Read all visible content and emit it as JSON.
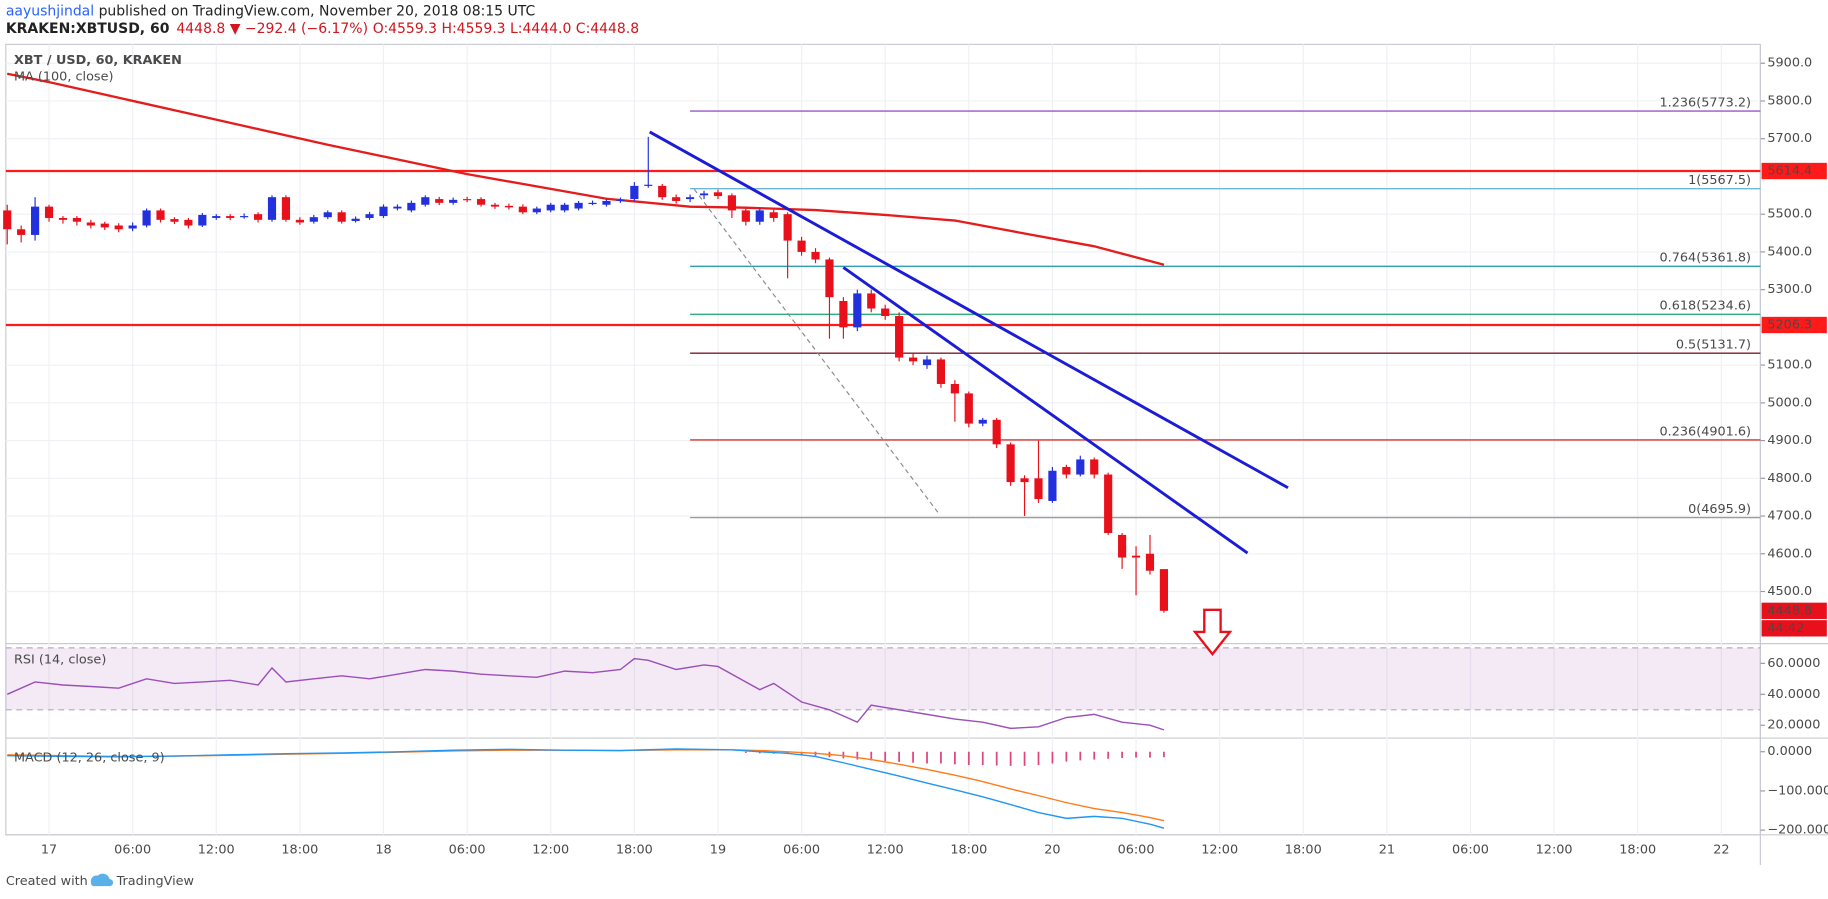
{
  "header": {
    "author": "aayushjindal",
    "published": " published on TradingView.com, November 20, 2018 08:15 UTC",
    "symbol": "KRAKEN:XBTUSD, 60",
    "change": "4448.8 ▼ −292.4 (−6.17%)",
    "ohlc": "O:4559.3 H:4559.3 L:4444.0 C:4448.8"
  },
  "chart_data": [
    {
      "type": "candlestick",
      "title": "XBT / USD, 60, KRAKEN",
      "up_color": "#2230dd",
      "down_color": "#e8101b",
      "xlim": [
        -3.1,
        122.8
      ],
      "ylim": [
        4365,
        5950
      ],
      "xticks": [
        {
          "value": 0,
          "label": "17"
        },
        {
          "value": 6,
          "label": "06:00"
        },
        {
          "value": 12,
          "label": "12:00"
        },
        {
          "value": 18,
          "label": "18:00"
        },
        {
          "value": 24,
          "label": "18"
        },
        {
          "value": 30,
          "label": "06:00"
        },
        {
          "value": 36,
          "label": "12:00"
        },
        {
          "value": 42,
          "label": "18:00"
        },
        {
          "value": 48,
          "label": "19"
        },
        {
          "value": 54,
          "label": "06:00"
        },
        {
          "value": 60,
          "label": "12:00"
        },
        {
          "value": 66,
          "label": "18:00"
        },
        {
          "value": 72,
          "label": "20"
        },
        {
          "value": 78,
          "label": "06:00"
        },
        {
          "value": 84,
          "label": "12:00"
        },
        {
          "value": 90,
          "label": "18:00"
        },
        {
          "value": 96,
          "label": "21"
        },
        {
          "value": 102,
          "label": "06:00"
        },
        {
          "value": 108,
          "label": "12:00"
        },
        {
          "value": 114,
          "label": "18:00"
        },
        {
          "value": 120,
          "label": "22"
        }
      ],
      "yticks": [
        {
          "value": 5900,
          "label": "5900.0"
        },
        {
          "value": 5800,
          "label": "5800.0"
        },
        {
          "value": 5700,
          "label": "5700.0"
        },
        {
          "value": 5500,
          "label": "5500.0"
        },
        {
          "value": 5400,
          "label": "5400.0"
        },
        {
          "value": 5300,
          "label": "5300.0"
        },
        {
          "value": 5100,
          "label": "5100.0"
        },
        {
          "value": 5000,
          "label": "5000.0"
        },
        {
          "value": 4900,
          "label": "4900.0"
        },
        {
          "value": 4800,
          "label": "4800.0"
        },
        {
          "value": 4700,
          "label": "4700.0"
        },
        {
          "value": 4600,
          "label": "4600.0"
        },
        {
          "value": 4500,
          "label": "4500.0"
        }
      ],
      "grid": true,
      "x": [
        -3,
        -2,
        -1,
        0,
        1,
        2,
        3,
        4,
        5,
        6,
        7,
        8,
        9,
        10,
        11,
        12,
        13,
        14,
        15,
        16,
        17,
        18,
        19,
        20,
        21,
        22,
        23,
        24,
        25,
        26,
        27,
        28,
        29,
        30,
        31,
        32,
        33,
        34,
        35,
        36,
        37,
        38,
        39,
        40,
        41,
        42,
        43,
        44,
        45,
        46,
        47,
        48,
        49,
        50,
        51,
        52,
        53,
        54,
        55,
        56,
        57,
        58,
        59,
        60,
        61,
        62,
        63,
        64,
        65,
        66,
        67,
        68,
        69,
        70,
        71,
        72,
        73,
        74,
        75,
        76,
        77,
        78,
        79,
        80
      ],
      "open": [
        5510,
        5460,
        5445,
        5520,
        5490,
        5490,
        5478,
        5475,
        5470,
        5462,
        5470,
        5510,
        5487,
        5485,
        5470,
        5490,
        5495,
        5492,
        5500,
        5485,
        5545,
        5485,
        5480,
        5492,
        5505,
        5482,
        5490,
        5495,
        5515,
        5510,
        5525,
        5540,
        5530,
        5540,
        5540,
        5525,
        5522,
        5520,
        5505,
        5510,
        5510,
        5515,
        5530,
        5525,
        5535,
        5540,
        5575,
        5575,
        5545,
        5540,
        5550,
        5558,
        5550,
        5510,
        5480,
        5505,
        5500,
        5430,
        5400,
        5380,
        5270,
        5200,
        5290,
        5250,
        5230,
        5120,
        5100,
        5115,
        5050,
        5025,
        4945,
        4955,
        4890,
        4800,
        4800,
        4740,
        4830,
        4810,
        4850,
        4810,
        4650,
        4595,
        4600,
        4559.3
      ],
      "high": [
        5525,
        5470,
        5545,
        5525,
        5495,
        5495,
        5485,
        5480,
        5476,
        5478,
        5515,
        5515,
        5492,
        5490,
        5503,
        5500,
        5500,
        5502,
        5505,
        5550,
        5550,
        5492,
        5498,
        5510,
        5510,
        5494,
        5506,
        5526,
        5526,
        5536,
        5550,
        5546,
        5544,
        5546,
        5545,
        5530,
        5528,
        5526,
        5520,
        5530,
        5530,
        5535,
        5536,
        5540,
        5544,
        5585,
        5705,
        5580,
        5552,
        5552,
        5562,
        5565,
        5555,
        5515,
        5515,
        5512,
        5505,
        5440,
        5410,
        5385,
        5280,
        5300,
        5300,
        5260,
        5240,
        5130,
        5125,
        5120,
        5060,
        5030,
        4960,
        4960,
        4895,
        4808,
        4900,
        4830,
        4836,
        4860,
        4855,
        4815,
        4655,
        4620,
        4650,
        4559.3
      ],
      "low": [
        5420,
        5425,
        5430,
        5480,
        5475,
        5470,
        5462,
        5458,
        5452,
        5455,
        5465,
        5478,
        5474,
        5462,
        5466,
        5485,
        5484,
        5488,
        5478,
        5480,
        5480,
        5472,
        5475,
        5487,
        5475,
        5478,
        5485,
        5490,
        5510,
        5505,
        5520,
        5524,
        5525,
        5532,
        5520,
        5514,
        5512,
        5500,
        5500,
        5505,
        5505,
        5510,
        5524,
        5520,
        5530,
        5535,
        5570,
        5538,
        5528,
        5532,
        5540,
        5540,
        5490,
        5470,
        5472,
        5480,
        5330,
        5390,
        5370,
        5170,
        5170,
        5190,
        5240,
        5220,
        5110,
        5100,
        5090,
        5040,
        4950,
        4935,
        4938,
        4880,
        4780,
        4700,
        4735,
        4735,
        4800,
        4805,
        4800,
        4650,
        4560,
        4490,
        4545,
        4444.0
      ],
      "close": [
        5460,
        5445,
        5520,
        5490,
        5485,
        5480,
        5470,
        5465,
        5460,
        5470,
        5510,
        5485,
        5480,
        5470,
        5498,
        5495,
        5490,
        5495,
        5485,
        5545,
        5485,
        5478,
        5492,
        5505,
        5480,
        5488,
        5500,
        5520,
        5520,
        5530,
        5545,
        5530,
        5538,
        5538,
        5525,
        5520,
        5518,
        5505,
        5515,
        5525,
        5525,
        5530,
        5530,
        5535,
        5538,
        5575,
        5578,
        5545,
        5535,
        5545,
        5555,
        5548,
        5510,
        5480,
        5510,
        5490,
        5430,
        5400,
        5380,
        5280,
        5200,
        5290,
        5250,
        5230,
        5120,
        5110,
        5115,
        5050,
        5025,
        4945,
        4955,
        4890,
        4790,
        4790,
        4745,
        4820,
        4810,
        4850,
        4810,
        4655,
        4590,
        4590,
        4555,
        4448.8
      ],
      "ma": {
        "name": "MA (100, close)",
        "color": "#e51c1c",
        "x": [
          -3,
          0,
          10,
          20,
          30,
          40,
          46,
          50,
          55,
          60,
          65,
          70,
          75,
          80
        ],
        "values": [
          5872,
          5850,
          5767,
          5684,
          5606,
          5541,
          5520,
          5517,
          5511,
          5498,
          5483,
          5449,
          5415,
          5366
        ]
      },
      "price_lines": [
        {
          "value": 5614.4,
          "color": "#ff1a1a"
        },
        {
          "value": 5206.3,
          "color": "#ff1a1a"
        }
      ],
      "fib_start": 46,
      "fib_levels": [
        {
          "value": 5773.2,
          "label": "1.236(5773.2)",
          "color": "#9c56c9"
        },
        {
          "value": 5567.5,
          "label": "1(5567.5)",
          "color": "#6cb8d4"
        },
        {
          "value": 5361.8,
          "label": "0.764(5361.8)",
          "color": "#2f9fb5"
        },
        {
          "value": 5234.6,
          "label": "0.618(5234.6)",
          "color": "#2fae7a"
        },
        {
          "value": 5131.7,
          "label": "0.5(5131.7)",
          "color": "#7b1e2c"
        },
        {
          "value": 4901.6,
          "label": "0.236(4901.6)",
          "color": "#d63232"
        },
        {
          "value": 4695.9,
          "label": "0(4695.9)",
          "color": "#9a9a9a"
        }
      ],
      "trendlines": [
        {
          "x": [
            43.1,
            88.9
          ],
          "y": [
            5718,
            4775
          ],
          "color": "#1c1cd6"
        },
        {
          "x": [
            57.0,
            86.0
          ],
          "y": [
            5359,
            4602
          ],
          "color": "#1c1cd6"
        }
      ],
      "dashed_line": {
        "x": [
          46.3,
          63.9
        ],
        "y": [
          5566,
          4704
        ],
        "color": "#8a8a8a"
      },
      "last_price": 4448.8,
      "countdown": "44:42"
    },
    {
      "type": "line",
      "title": "RSI (14, close)",
      "ylim": [
        12.5,
        72
      ],
      "band": [
        30,
        70
      ],
      "color": "#9b4fb8",
      "yticks": [
        {
          "value": 60,
          "label": "60.0000"
        },
        {
          "value": 40,
          "label": "40.0000"
        },
        {
          "value": 20,
          "label": "20.0000"
        }
      ],
      "x": [
        -3,
        -1,
        1,
        3,
        5,
        7,
        9,
        11,
        13,
        15,
        16,
        17,
        19,
        21,
        23,
        25,
        27,
        29,
        31,
        33,
        35,
        37,
        39,
        41,
        42,
        43,
        45,
        47,
        48,
        50,
        51,
        52,
        54,
        56,
        58,
        59,
        61,
        63,
        65,
        67,
        69,
        71,
        73,
        75,
        77,
        79,
        80
      ],
      "values": [
        40,
        48,
        46,
        45,
        44,
        50,
        47,
        48,
        49,
        46,
        57,
        48,
        50,
        52,
        50,
        53,
        56,
        55,
        53,
        52,
        51,
        55,
        54,
        56,
        63,
        62,
        56,
        59,
        58,
        48,
        43,
        47,
        35,
        30,
        22,
        33,
        30,
        27,
        24,
        22,
        18,
        19,
        25,
        27,
        22,
        20,
        17
      ]
    },
    {
      "type": "macd",
      "title": "MACD (12, 26, close, 9)",
      "ylim": [
        -209,
        32
      ],
      "yticks": [
        {
          "value": 0,
          "label": "0.0000"
        },
        {
          "value": -100,
          "label": "−100.0000"
        },
        {
          "value": -200,
          "label": "−200.0000"
        }
      ],
      "x": [
        -3,
        1,
        5,
        9,
        13,
        17,
        21,
        25,
        29,
        33,
        37,
        41,
        45,
        49,
        51,
        53,
        55,
        57,
        59,
        61,
        63,
        65,
        67,
        69,
        71,
        73,
        75,
        77,
        79,
        80
      ],
      "macd": {
        "color": "#2196f3",
        "values": [
          -10,
          -12,
          -13,
          -11,
          -8,
          -5,
          -3,
          0,
          4,
          6,
          4,
          3,
          7,
          5,
          0,
          -4,
          -12,
          -28,
          -45,
          -62,
          -80,
          -97,
          -115,
          -135,
          -155,
          -170,
          -165,
          -170,
          -185,
          -195
        ]
      },
      "signal": {
        "color": "#ff7a1a",
        "values": [
          -8,
          -10,
          -12,
          -11,
          -9,
          -6,
          -4,
          -1,
          2,
          4,
          4,
          3,
          5,
          5,
          3,
          0,
          -4,
          -10,
          -20,
          -32,
          -45,
          -60,
          -76,
          -95,
          -112,
          -130,
          -145,
          -155,
          -168,
          -176
        ]
      },
      "histogram": {
        "color": "#e0457b",
        "x": [
          50,
          51,
          52,
          53,
          54,
          55,
          56,
          57,
          58,
          59,
          60,
          61,
          62,
          63,
          64,
          65,
          66,
          67,
          68,
          69,
          70,
          71,
          72,
          73,
          74,
          75,
          76,
          77,
          78,
          79,
          80
        ],
        "values": [
          -3,
          -4,
          -5,
          -6,
          -8,
          -10,
          -14,
          -17,
          -20,
          -22,
          -24,
          -26,
          -28,
          -30,
          -30,
          -32,
          -34,
          -34,
          -35,
          -36,
          -36,
          -34,
          -30,
          -25,
          -22,
          -20,
          -18,
          -16,
          -15,
          -15,
          -14
        ]
      }
    }
  ],
  "footer": {
    "created": "Created with",
    "brand": "TradingView"
  }
}
